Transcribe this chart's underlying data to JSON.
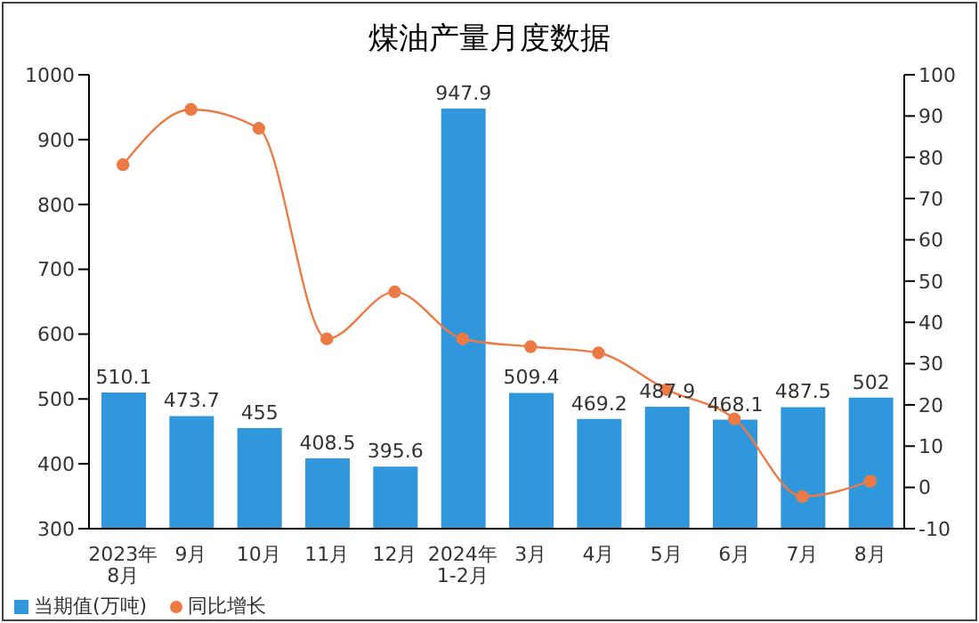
{
  "chart_data": {
    "type": "bar",
    "title": "煤油产量月度数据",
    "categories": [
      "2023年\n8月",
      "9月",
      "10月",
      "11月",
      "12月",
      "2024年\n1-2月",
      "3月",
      "4月",
      "5月",
      "6月",
      "7月",
      "8月"
    ],
    "series": [
      {
        "name": "当期值(万吨)",
        "color": "#3097dc",
        "values": [
          510.1,
          473.7,
          455,
          408.5,
          395.6,
          947.9,
          509.4,
          469.2,
          487.9,
          468.1,
          487.5,
          502
        ],
        "value_labels": [
          "510.1",
          "473.7",
          "455",
          "408.5",
          "395.6",
          "947.9",
          "509.4",
          "469.2",
          "487.9",
          "468.1",
          "487.5",
          "502"
        ]
      },
      {
        "name": "同比增长",
        "type": "line",
        "axis": "y2",
        "color": "#ec7a45",
        "values": [
          78.2,
          91.6,
          87.0,
          36.0,
          47.4,
          36.0,
          34.1,
          32.6,
          23.7,
          16.6,
          -2.2,
          1.5
        ]
      }
    ],
    "ylim": [
      300,
      1000
    ],
    "yticks": [
      300,
      400,
      500,
      600,
      700,
      800,
      900,
      1000
    ],
    "y2lim": [
      -10,
      100
    ],
    "y2ticks": [
      -10,
      0,
      10,
      20,
      30,
      40,
      50,
      60,
      70,
      80,
      90,
      100
    ],
    "legend": "bottom left",
    "marker": "circle"
  }
}
